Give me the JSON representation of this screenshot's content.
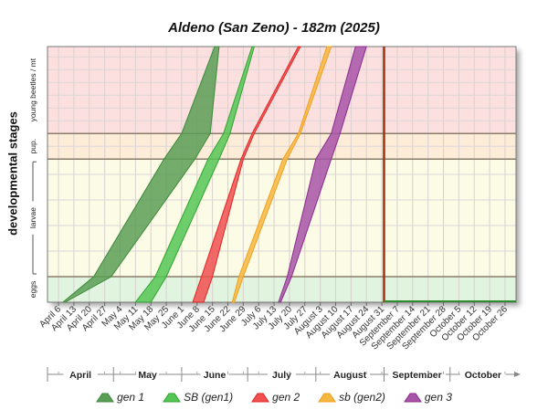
{
  "chart_data": {
    "type": "area",
    "title": "Aldeno (San Zeno) - 182m (2025)",
    "ylabel": "developmental stages",
    "stages": [
      {
        "label": "young beetles / mt",
        "color": "#fce0e0",
        "range": [
          0.66,
          1.0
        ]
      },
      {
        "label": "pup.",
        "color": "#fcecd8",
        "range": [
          0.56,
          0.66
        ]
      },
      {
        "label": "larvae",
        "color": "#fbfbe6",
        "range": [
          0.1,
          0.56
        ]
      },
      {
        "label": "eggs",
        "color": "#e0f4df",
        "range": [
          0.0,
          0.1
        ]
      }
    ],
    "x_start": "2025-04-01",
    "x_end": "2025-10-31",
    "x_tick_labels": [
      "April 6",
      "April 13",
      "April 20",
      "April 27",
      "May 4",
      "May 11",
      "May 18",
      "May 25",
      "June 1",
      "June 8",
      "June 15",
      "June 22",
      "June 29",
      "July 6",
      "July 13",
      "July 20",
      "July 27",
      "August 3",
      "August 10",
      "August 17",
      "August 24",
      "August 31",
      "September 7",
      "September 14",
      "September 21",
      "September 28",
      "October 5",
      "October 12",
      "October 19",
      "October 26"
    ],
    "months": [
      "April",
      "May",
      "June",
      "July",
      "August",
      "September",
      "October"
    ],
    "today_marker": "2025-09-01",
    "series": [
      {
        "name": "gen 1",
        "color": "#3d8a3a",
        "fill": "#5a9e55",
        "upper": [
          [
            "2025-04-08",
            0.0
          ],
          [
            "2025-04-22",
            0.1
          ],
          [
            "2025-05-24",
            0.56
          ],
          [
            "2025-06-01",
            0.66
          ],
          [
            "2025-06-16",
            1.0
          ]
        ],
        "lower": [
          [
            "2025-04-09",
            0.0
          ],
          [
            "2025-04-30",
            0.1
          ],
          [
            "2025-06-07",
            0.56
          ],
          [
            "2025-06-14",
            0.66
          ],
          [
            "2025-06-18",
            1.0
          ]
        ]
      },
      {
        "name": "SB (gen1)",
        "color": "#2fa32f",
        "fill": "#55c655",
        "upper": [
          [
            "2025-05-11",
            0.0
          ],
          [
            "2025-05-20",
            0.1
          ],
          [
            "2025-06-13",
            0.56
          ],
          [
            "2025-06-20",
            0.66
          ],
          [
            "2025-07-03",
            1.0
          ]
        ],
        "lower": [
          [
            "2025-05-18",
            0.0
          ],
          [
            "2025-05-25",
            0.1
          ],
          [
            "2025-06-18",
            0.56
          ],
          [
            "2025-06-23",
            0.66
          ],
          [
            "2025-07-04",
            1.0
          ]
        ]
      },
      {
        "name": "gen 2",
        "color": "#e02424",
        "fill": "#f05050",
        "upper": [
          [
            "2025-06-06",
            0.0
          ],
          [
            "2025-06-10",
            0.1
          ],
          [
            "2025-06-28",
            0.56
          ],
          [
            "2025-07-03",
            0.66
          ],
          [
            "2025-07-24",
            1.0
          ]
        ],
        "lower": [
          [
            "2025-06-11",
            0.0
          ],
          [
            "2025-06-15",
            0.1
          ],
          [
            "2025-06-29",
            0.56
          ],
          [
            "2025-07-04",
            0.66
          ],
          [
            "2025-07-25",
            1.0
          ]
        ]
      },
      {
        "name": "sb (gen2)",
        "color": "#f0a020",
        "fill": "#f5b740",
        "upper": [
          [
            "2025-06-24",
            0.0
          ],
          [
            "2025-06-27",
            0.1
          ],
          [
            "2025-07-17",
            0.56
          ],
          [
            "2025-07-24",
            0.66
          ],
          [
            "2025-08-06",
            1.0
          ]
        ],
        "lower": [
          [
            "2025-06-25",
            0.0
          ],
          [
            "2025-06-29",
            0.1
          ],
          [
            "2025-07-19",
            0.56
          ],
          [
            "2025-07-25",
            0.66
          ],
          [
            "2025-08-08",
            1.0
          ]
        ]
      },
      {
        "name": "gen 3",
        "color": "#8b2c8b",
        "fill": "#a854a8",
        "upper": [
          [
            "2025-07-15",
            0.0
          ],
          [
            "2025-07-19",
            0.1
          ],
          [
            "2025-08-01",
            0.56
          ],
          [
            "2025-08-08",
            0.66
          ],
          [
            "2025-08-19",
            1.0
          ]
        ],
        "lower": [
          [
            "2025-07-16",
            0.0
          ],
          [
            "2025-07-21",
            0.1
          ],
          [
            "2025-08-08",
            0.56
          ],
          [
            "2025-08-12",
            0.66
          ],
          [
            "2025-08-24",
            1.0
          ]
        ]
      }
    ],
    "grid": true,
    "legend_position": "bottom"
  }
}
